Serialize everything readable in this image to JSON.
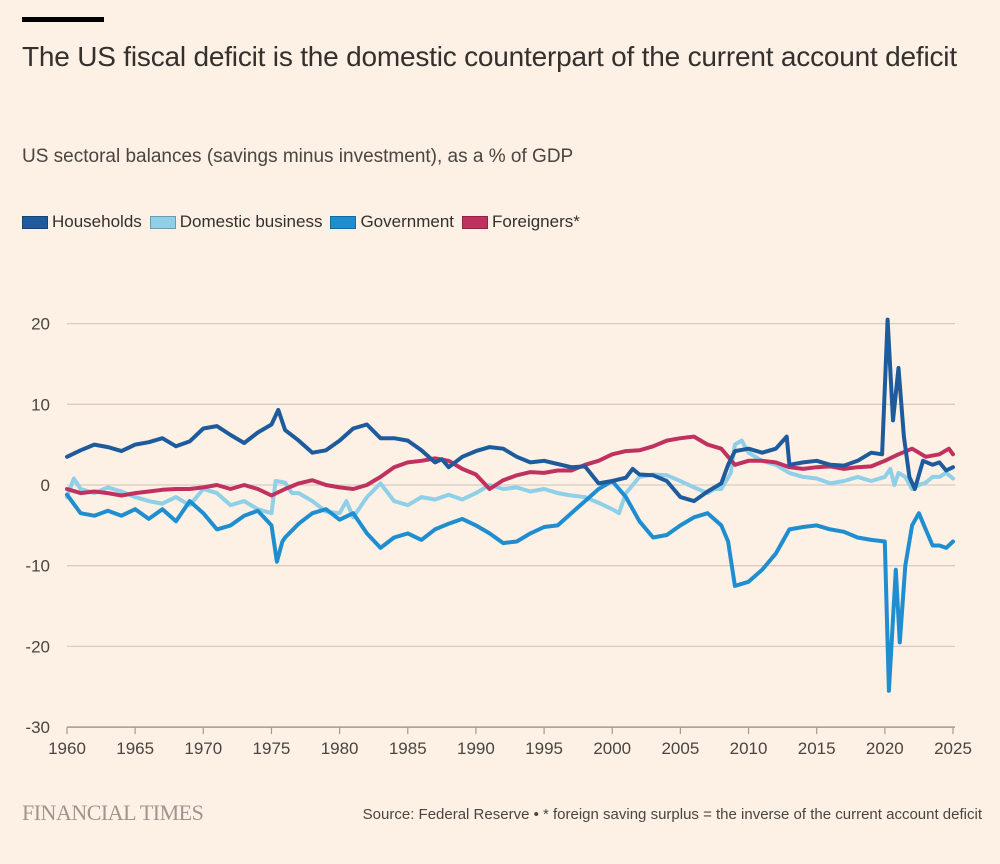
{
  "header": {
    "title": "The US fiscal deficit is the domestic counterpart of the current account deficit",
    "subtitle": "US sectoral balances (savings minus investment), as a % of GDP"
  },
  "footer": {
    "brand": "FINANCIAL TIMES",
    "source": "Source: Federal Reserve • * foreign saving surplus = the inverse of the current account deficit"
  },
  "chart_data": {
    "type": "line",
    "title": "The US fiscal deficit is the domestic counterpart of the current account deficit",
    "subtitle": "US sectoral balances (savings minus investment), as a % of GDP",
    "xlabel": "",
    "ylabel": "% of GDP",
    "xlim": [
      1960,
      2025.2
    ],
    "ylim": [
      -30,
      22
    ],
    "yticks": [
      20,
      10,
      0,
      -10,
      -20,
      -30
    ],
    "ytick_labels": [
      "20",
      "10",
      "0",
      "-10",
      "-20",
      "-30"
    ],
    "xticks": [
      1960,
      1965,
      1970,
      1975,
      1980,
      1985,
      1990,
      1995,
      2000,
      2005,
      2010,
      2015,
      2020,
      2025
    ],
    "xtick_labels": [
      "1960",
      "1965",
      "1970",
      "1975",
      "1980",
      "1985",
      "1990",
      "1995",
      "2000",
      "2005",
      "2010",
      "2015",
      "2020",
      "2025"
    ],
    "grid": true,
    "legend_position": "top-left",
    "series": [
      {
        "name": "Households",
        "color": "#1e5b9c",
        "points": [
          [
            1960,
            3.5
          ],
          [
            1961,
            4.3
          ],
          [
            1962,
            5
          ],
          [
            1963,
            4.7
          ],
          [
            1964,
            4.2
          ],
          [
            1965,
            5
          ],
          [
            1966,
            5.3
          ],
          [
            1967,
            5.8
          ],
          [
            1968,
            4.8
          ],
          [
            1969,
            5.4
          ],
          [
            1970,
            7
          ],
          [
            1971,
            7.3
          ],
          [
            1972,
            6.2
          ],
          [
            1973,
            5.2
          ],
          [
            1974,
            6.5
          ],
          [
            1975,
            7.5
          ],
          [
            1975.5,
            9.3
          ],
          [
            1976,
            6.8
          ],
          [
            1977,
            5.5
          ],
          [
            1978,
            4
          ],
          [
            1979,
            4.3
          ],
          [
            1980,
            5.5
          ],
          [
            1981,
            7
          ],
          [
            1982,
            7.5
          ],
          [
            1983,
            5.8
          ],
          [
            1984,
            5.8
          ],
          [
            1985,
            5.5
          ],
          [
            1986,
            4.3
          ],
          [
            1987,
            2.8
          ],
          [
            1987.5,
            3.2
          ],
          [
            1988,
            2.2
          ],
          [
            1989,
            3.5
          ],
          [
            1990,
            4.2
          ],
          [
            1991,
            4.7
          ],
          [
            1992,
            4.5
          ],
          [
            1993,
            3.5
          ],
          [
            1994,
            2.8
          ],
          [
            1995,
            3
          ],
          [
            1996,
            2.6
          ],
          [
            1997,
            2.2
          ],
          [
            1998,
            2.3
          ],
          [
            1999,
            0.2
          ],
          [
            2000,
            0.5
          ],
          [
            2001,
            0.9
          ],
          [
            2001.5,
            2
          ],
          [
            2002,
            1.3
          ],
          [
            2003,
            1.2
          ],
          [
            2004,
            0.5
          ],
          [
            2005,
            -1.5
          ],
          [
            2006,
            -2
          ],
          [
            2007,
            -0.8
          ],
          [
            2008,
            0.2
          ],
          [
            2008.5,
            2.5
          ],
          [
            2009,
            4.2
          ],
          [
            2010,
            4.5
          ],
          [
            2011,
            4
          ],
          [
            2012,
            4.5
          ],
          [
            2012.8,
            6
          ],
          [
            2013,
            2.5
          ],
          [
            2014,
            2.8
          ],
          [
            2015,
            3
          ],
          [
            2016,
            2.5
          ],
          [
            2017,
            2.4
          ],
          [
            2018,
            3
          ],
          [
            2019,
            4
          ],
          [
            2019.8,
            3.8
          ],
          [
            2020.2,
            20.5
          ],
          [
            2020.6,
            8
          ],
          [
            2021,
            14.5
          ],
          [
            2021.4,
            6
          ],
          [
            2021.8,
            1
          ],
          [
            2022.2,
            -0.5
          ],
          [
            2022.8,
            3
          ],
          [
            2023.5,
            2.5
          ],
          [
            2024,
            2.8
          ],
          [
            2024.5,
            1.8
          ],
          [
            2025,
            2.2
          ]
        ]
      },
      {
        "name": "Domestic business",
        "color": "#8fd0e8",
        "points": [
          [
            1960,
            -1.5
          ],
          [
            1960.5,
            0.8
          ],
          [
            1961,
            -0.5
          ],
          [
            1962,
            -1
          ],
          [
            1963,
            -0.3
          ],
          [
            1964,
            -0.8
          ],
          [
            1965,
            -1.5
          ],
          [
            1966,
            -2
          ],
          [
            1967,
            -2.3
          ],
          [
            1968,
            -1.5
          ],
          [
            1969,
            -2.5
          ],
          [
            1970,
            -0.5
          ],
          [
            1971,
            -1
          ],
          [
            1972,
            -2.5
          ],
          [
            1973,
            -2
          ],
          [
            1974,
            -3
          ],
          [
            1975,
            -3.5
          ],
          [
            1975.3,
            0.5
          ],
          [
            1976,
            0.3
          ],
          [
            1976.5,
            -1
          ],
          [
            1977,
            -1
          ],
          [
            1978,
            -2
          ],
          [
            1979,
            -3.3
          ],
          [
            1980,
            -3.5
          ],
          [
            1980.5,
            -2
          ],
          [
            1981,
            -4
          ],
          [
            1982,
            -1.5
          ],
          [
            1983,
            0.2
          ],
          [
            1984,
            -2
          ],
          [
            1985,
            -2.5
          ],
          [
            1986,
            -1.5
          ],
          [
            1987,
            -1.8
          ],
          [
            1988,
            -1.2
          ],
          [
            1989,
            -1.8
          ],
          [
            1990,
            -1
          ],
          [
            1991,
            0
          ],
          [
            1992,
            -0.5
          ],
          [
            1993,
            -0.3
          ],
          [
            1994,
            -0.8
          ],
          [
            1995,
            -0.5
          ],
          [
            1996,
            -1
          ],
          [
            1997,
            -1.3
          ],
          [
            1998,
            -1.5
          ],
          [
            1999,
            -2.2
          ],
          [
            2000,
            -3
          ],
          [
            2000.5,
            -3.5
          ],
          [
            2001,
            -1
          ],
          [
            2002,
            1
          ],
          [
            2003,
            1.3
          ],
          [
            2004,
            1.2
          ],
          [
            2005,
            0.5
          ],
          [
            2006,
            -0.3
          ],
          [
            2007,
            -1
          ],
          [
            2007.5,
            -0.5
          ],
          [
            2008,
            -0.5
          ],
          [
            2008.7,
            1.5
          ],
          [
            2009,
            5
          ],
          [
            2009.5,
            5.5
          ],
          [
            2010,
            4
          ],
          [
            2011,
            3
          ],
          [
            2012,
            2.5
          ],
          [
            2013,
            1.5
          ],
          [
            2014,
            1
          ],
          [
            2015,
            0.8
          ],
          [
            2016,
            0.2
          ],
          [
            2017,
            0.5
          ],
          [
            2018,
            1
          ],
          [
            2019,
            0.5
          ],
          [
            2020,
            1
          ],
          [
            2020.4,
            2
          ],
          [
            2020.7,
            0
          ],
          [
            2021,
            1.5
          ],
          [
            2021.5,
            1
          ],
          [
            2022,
            -0.5
          ],
          [
            2022.5,
            0
          ],
          [
            2023,
            0.3
          ],
          [
            2023.5,
            1
          ],
          [
            2024,
            1
          ],
          [
            2024.5,
            1.5
          ],
          [
            2025,
            0.8
          ]
        ]
      },
      {
        "name": "Government",
        "color": "#1f8ed1",
        "points": [
          [
            1960,
            -1.2
          ],
          [
            1961,
            -3.5
          ],
          [
            1962,
            -3.8
          ],
          [
            1963,
            -3.2
          ],
          [
            1964,
            -3.8
          ],
          [
            1965,
            -3
          ],
          [
            1966,
            -4.2
          ],
          [
            1967,
            -3
          ],
          [
            1968,
            -4.5
          ],
          [
            1969,
            -2
          ],
          [
            1970,
            -3.5
          ],
          [
            1971,
            -5.5
          ],
          [
            1972,
            -5
          ],
          [
            1973,
            -3.8
          ],
          [
            1974,
            -3.2
          ],
          [
            1975,
            -5
          ],
          [
            1975.4,
            -9.5
          ],
          [
            1975.8,
            -7
          ],
          [
            1976,
            -6.5
          ],
          [
            1977,
            -4.8
          ],
          [
            1978,
            -3.5
          ],
          [
            1979,
            -3
          ],
          [
            1980,
            -4.3
          ],
          [
            1981,
            -3.5
          ],
          [
            1982,
            -6
          ],
          [
            1983,
            -7.8
          ],
          [
            1984,
            -6.5
          ],
          [
            1985,
            -6
          ],
          [
            1986,
            -6.8
          ],
          [
            1987,
            -5.5
          ],
          [
            1988,
            -4.8
          ],
          [
            1989,
            -4.2
          ],
          [
            1990,
            -5
          ],
          [
            1991,
            -6
          ],
          [
            1992,
            -7.2
          ],
          [
            1993,
            -7
          ],
          [
            1994,
            -6
          ],
          [
            1995,
            -5.2
          ],
          [
            1996,
            -5
          ],
          [
            1997,
            -3.5
          ],
          [
            1998,
            -2
          ],
          [
            1999,
            -0.5
          ],
          [
            2000,
            0.5
          ],
          [
            2000.5,
            -0.5
          ],
          [
            2001,
            -1.5
          ],
          [
            2002,
            -4.5
          ],
          [
            2003,
            -6.5
          ],
          [
            2004,
            -6.2
          ],
          [
            2005,
            -5
          ],
          [
            2006,
            -4
          ],
          [
            2007,
            -3.5
          ],
          [
            2008,
            -5
          ],
          [
            2008.5,
            -7
          ],
          [
            2009,
            -12.5
          ],
          [
            2010,
            -12
          ],
          [
            2011,
            -10.5
          ],
          [
            2012,
            -8.5
          ],
          [
            2013,
            -5.5
          ],
          [
            2014,
            -5.2
          ],
          [
            2015,
            -5
          ],
          [
            2016,
            -5.5
          ],
          [
            2017,
            -5.8
          ],
          [
            2018,
            -6.5
          ],
          [
            2019,
            -6.8
          ],
          [
            2020,
            -7
          ],
          [
            2020.3,
            -25.5
          ],
          [
            2020.8,
            -10.5
          ],
          [
            2021.1,
            -19.5
          ],
          [
            2021.5,
            -10
          ],
          [
            2022,
            -5
          ],
          [
            2022.5,
            -3.5
          ],
          [
            2023,
            -5.5
          ],
          [
            2023.5,
            -7.5
          ],
          [
            2024,
            -7.5
          ],
          [
            2024.5,
            -7.8
          ],
          [
            2025,
            -7
          ]
        ]
      },
      {
        "name": "Foreigners*",
        "color": "#c0315f",
        "points": [
          [
            1960,
            -0.5
          ],
          [
            1961,
            -1
          ],
          [
            1962,
            -0.8
          ],
          [
            1963,
            -1
          ],
          [
            1964,
            -1.3
          ],
          [
            1965,
            -1
          ],
          [
            1966,
            -0.8
          ],
          [
            1967,
            -0.6
          ],
          [
            1968,
            -0.5
          ],
          [
            1969,
            -0.5
          ],
          [
            1970,
            -0.3
          ],
          [
            1971,
            0
          ],
          [
            1972,
            -0.5
          ],
          [
            1973,
            0
          ],
          [
            1974,
            -0.5
          ],
          [
            1975,
            -1.3
          ],
          [
            1976,
            -0.5
          ],
          [
            1977,
            0.2
          ],
          [
            1978,
            0.6
          ],
          [
            1979,
            0
          ],
          [
            1980,
            -0.3
          ],
          [
            1981,
            -0.5
          ],
          [
            1982,
            0
          ],
          [
            1983,
            1
          ],
          [
            1984,
            2.2
          ],
          [
            1985,
            2.8
          ],
          [
            1986,
            3
          ],
          [
            1987,
            3.3
          ],
          [
            1988,
            3
          ],
          [
            1989,
            2
          ],
          [
            1990,
            1.3
          ],
          [
            1991,
            -0.5
          ],
          [
            1992,
            0.6
          ],
          [
            1993,
            1.2
          ],
          [
            1994,
            1.6
          ],
          [
            1995,
            1.5
          ],
          [
            1996,
            1.8
          ],
          [
            1997,
            1.8
          ],
          [
            1998,
            2.5
          ],
          [
            1999,
            3
          ],
          [
            2000,
            3.8
          ],
          [
            2001,
            4.2
          ],
          [
            2002,
            4.3
          ],
          [
            2003,
            4.8
          ],
          [
            2004,
            5.5
          ],
          [
            2005,
            5.8
          ],
          [
            2006,
            6
          ],
          [
            2007,
            5
          ],
          [
            2008,
            4.5
          ],
          [
            2009,
            2.5
          ],
          [
            2010,
            3
          ],
          [
            2011,
            3
          ],
          [
            2012,
            2.8
          ],
          [
            2013,
            2.2
          ],
          [
            2014,
            2
          ],
          [
            2015,
            2.2
          ],
          [
            2016,
            2.3
          ],
          [
            2017,
            2
          ],
          [
            2018,
            2.2
          ],
          [
            2019,
            2.3
          ],
          [
            2020,
            3
          ],
          [
            2021,
            3.8
          ],
          [
            2022,
            4.5
          ],
          [
            2022.5,
            4
          ],
          [
            2023,
            3.5
          ],
          [
            2024,
            3.8
          ],
          [
            2024.7,
            4.5
          ],
          [
            2025,
            3.8
          ]
        ]
      }
    ]
  }
}
